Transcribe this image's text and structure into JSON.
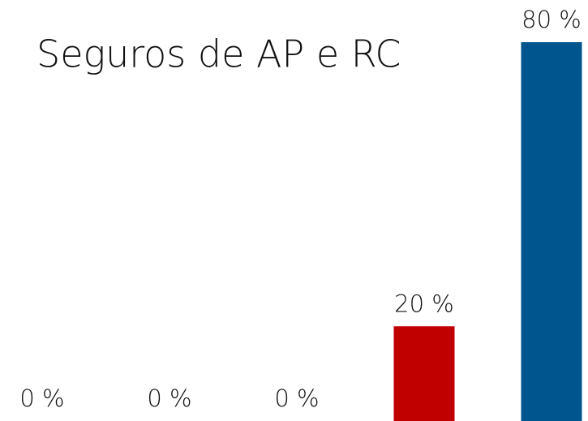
{
  "chart_data": {
    "type": "bar",
    "title": "Seguros de AP e RC",
    "categories": [
      null,
      null,
      null,
      null,
      null
    ],
    "values": [
      0,
      0,
      0,
      20,
      80
    ],
    "value_labels": [
      "0 %",
      "0 %",
      "0 %",
      "20 %",
      "80 %"
    ],
    "colors": [
      "#c00000",
      "#c00000",
      "#c00000",
      "#c00000",
      "#00558f"
    ],
    "ylim": [
      0,
      80
    ]
  }
}
